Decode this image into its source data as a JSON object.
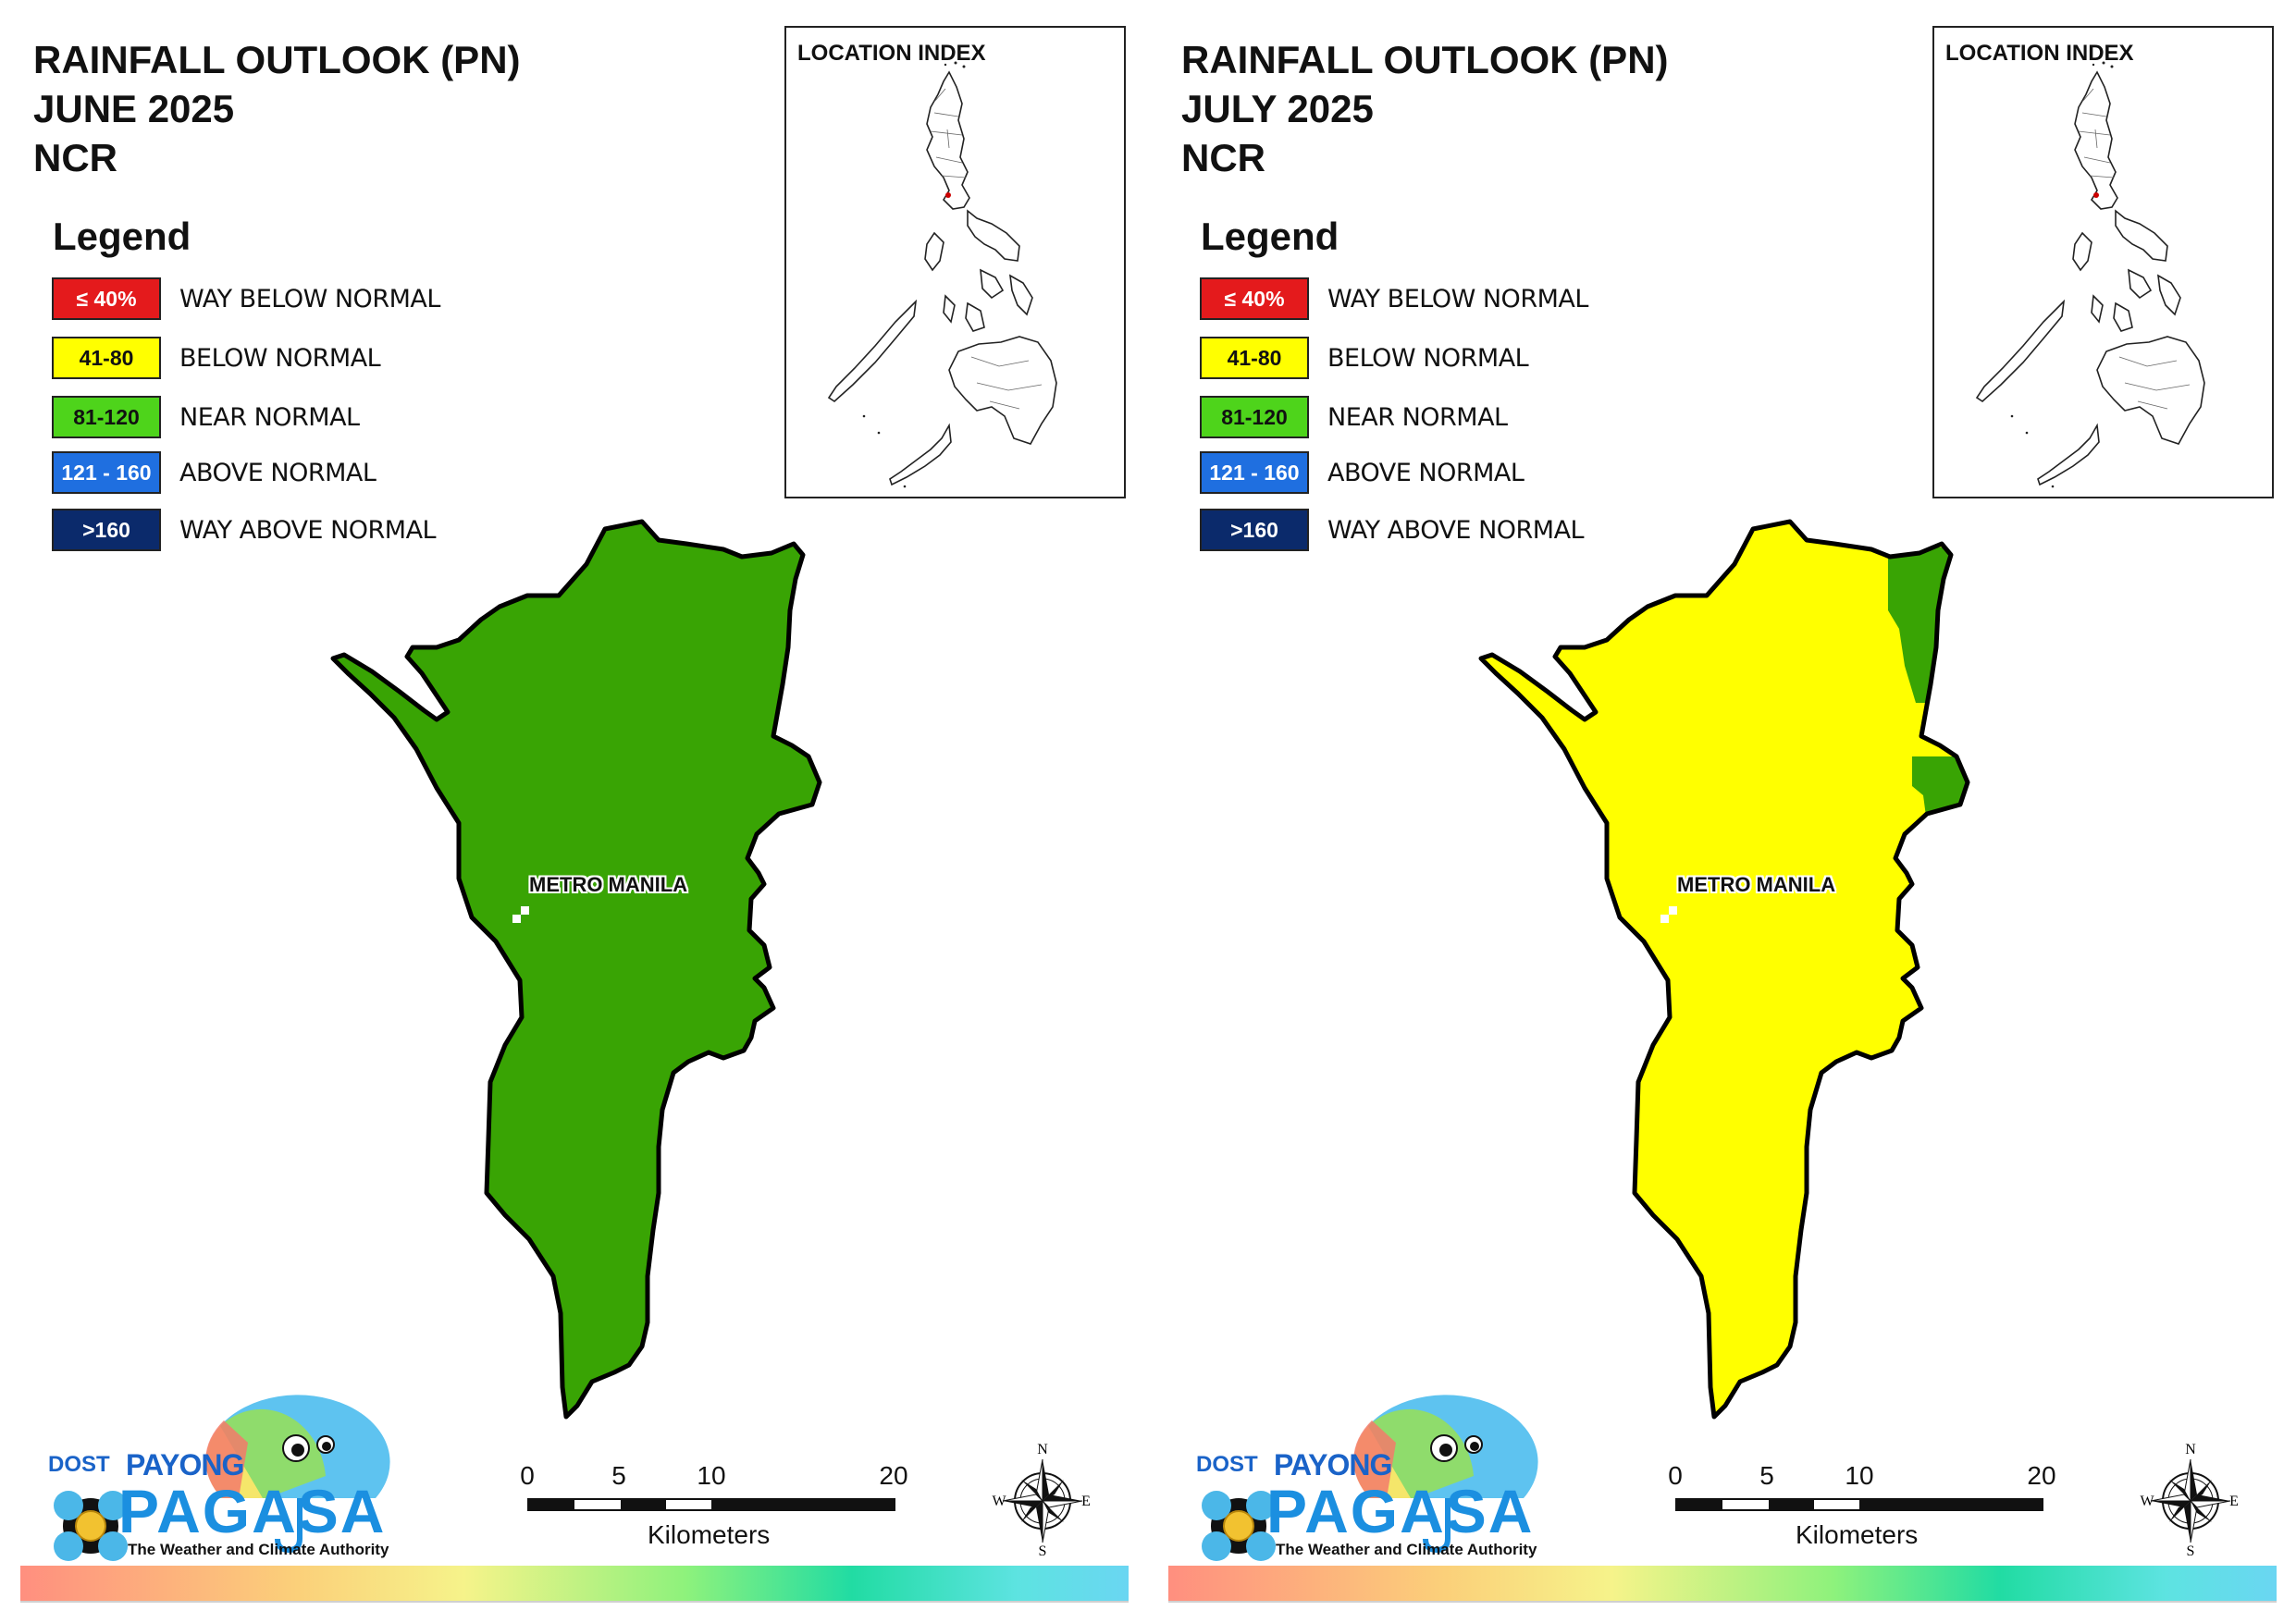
{
  "colors": {
    "way_below_normal": "#e41a1c",
    "below_normal": "#ffff00",
    "near_normal": "#4ed41b",
    "near_normal_map": "#39a404",
    "above_normal": "#1f6fe0",
    "way_above_normal": "#0b2a6b"
  },
  "panels": [
    {
      "title_line1": "RAINFALL OUTLOOK (PN)",
      "title_line2": "JUNE 2025",
      "title_line3": "NCR",
      "map_fill": "#39a404",
      "map_category": "NEAR NORMAL"
    },
    {
      "title_line1": "RAINFALL OUTLOOK (PN)",
      "title_line2": "JULY 2025",
      "title_line3": "NCR",
      "map_fill": "#ffff00",
      "map_category": "BELOW NORMAL",
      "minor_patch_fill": "#39a404",
      "minor_patch_category": "NEAR NORMAL"
    }
  ],
  "legend": {
    "title": "Legend",
    "items": [
      {
        "range": "≤ 40%",
        "label": "WAY BELOW NORMAL",
        "color": "#e41a1c",
        "text_color": "#ffffff"
      },
      {
        "range": "41-80",
        "label": "BELOW NORMAL",
        "color": "#ffff00",
        "text_color": "#111111"
      },
      {
        "range": "81-120",
        "label": "NEAR NORMAL",
        "color": "#4ed41b",
        "text_color": "#111111"
      },
      {
        "range": "121 - 160",
        "label": "ABOVE NORMAL",
        "color": "#1f6fe0",
        "text_color": "#ffffff"
      },
      {
        "range": ">160",
        "label": "WAY ABOVE NORMAL",
        "color": "#0b2a6b",
        "text_color": "#ffffff"
      }
    ]
  },
  "inset": {
    "title": "LOCATION INDEX"
  },
  "map": {
    "region_label": "METRO MANILA"
  },
  "scale_bar": {
    "ticks": [
      "0",
      "5",
      "10",
      "20"
    ],
    "unit": "Kilometers"
  },
  "compass": {
    "north": "N",
    "south": "S",
    "east": "E",
    "west": "W"
  },
  "logo": {
    "dost": "DOST",
    "payong": "PAYONG",
    "pagasa": "PAGASA",
    "tagline": "The Weather and Climate Authority"
  }
}
